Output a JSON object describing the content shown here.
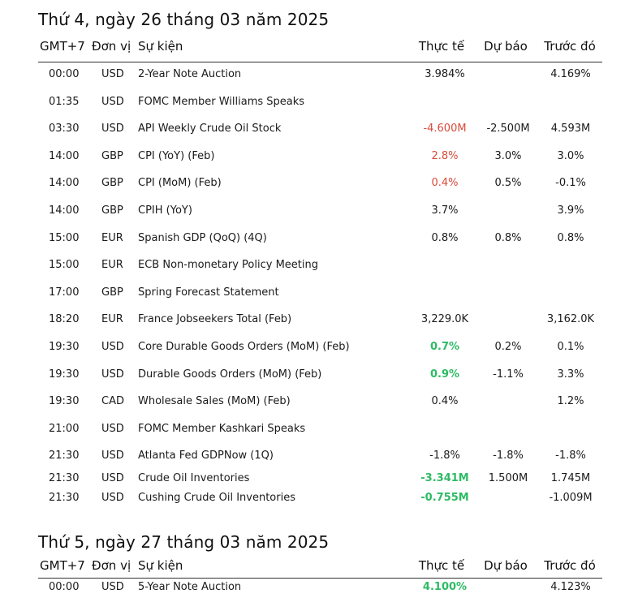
{
  "headers": {
    "gmt": "GMT+7",
    "currency": "Đơn vị",
    "event": "Sự kiện",
    "actual": "Thực tế",
    "forecast": "Dự báo",
    "previous": "Trước đó"
  },
  "days": [
    {
      "title": "Thứ 4, ngày 26 tháng 03 năm 2025",
      "rows": [
        {
          "time": "00:00",
          "cur": "USD",
          "event": "2-Year Note Auction",
          "actual": "3.984%",
          "forecast": "",
          "previous": "4.169%",
          "tone": ""
        },
        {
          "time": "01:35",
          "cur": "USD",
          "event": "FOMC Member Williams Speaks",
          "actual": "",
          "forecast": "",
          "previous": "",
          "tone": ""
        },
        {
          "time": "03:30",
          "cur": "USD",
          "event": "API Weekly Crude Oil Stock",
          "actual": "-4.600M",
          "forecast": "-2.500M",
          "previous": "4.593M",
          "tone": "neg"
        },
        {
          "time": "14:00",
          "cur": "GBP",
          "event": "CPI (YoY) (Feb)",
          "actual": "2.8%",
          "forecast": "3.0%",
          "previous": "3.0%",
          "tone": "neg"
        },
        {
          "time": "14:00",
          "cur": "GBP",
          "event": "CPI (MoM) (Feb)",
          "actual": "0.4%",
          "forecast": "0.5%",
          "previous": "-0.1%",
          "tone": "neg"
        },
        {
          "time": "14:00",
          "cur": "GBP",
          "event": "CPIH (YoY)",
          "actual": "3.7%",
          "forecast": "",
          "previous": "3.9%",
          "tone": ""
        },
        {
          "time": "15:00",
          "cur": "EUR",
          "event": "Spanish GDP (QoQ) (4Q)",
          "actual": "0.8%",
          "forecast": "0.8%",
          "previous": "0.8%",
          "tone": ""
        },
        {
          "time": "15:00",
          "cur": "EUR",
          "event": "ECB Non-monetary Policy Meeting",
          "actual": "",
          "forecast": "",
          "previous": "",
          "tone": ""
        },
        {
          "time": "17:00",
          "cur": "GBP",
          "event": "Spring Forecast Statement",
          "actual": "",
          "forecast": "",
          "previous": "",
          "tone": ""
        },
        {
          "time": "18:20",
          "cur": "EUR",
          "event": "France Jobseekers Total (Feb)",
          "actual": "3,229.0K",
          "forecast": "",
          "previous": "3,162.0K",
          "tone": ""
        },
        {
          "time": "19:30",
          "cur": "USD",
          "event": "Core Durable Goods Orders (MoM) (Feb)",
          "actual": "0.7%",
          "forecast": "0.2%",
          "previous": "0.1%",
          "tone": "pos"
        },
        {
          "time": "19:30",
          "cur": "USD",
          "event": "Durable Goods Orders (MoM) (Feb)",
          "actual": "0.9%",
          "forecast": "-1.1%",
          "previous": "3.3%",
          "tone": "pos"
        },
        {
          "time": "19:30",
          "cur": "CAD",
          "event": "Wholesale Sales (MoM) (Feb)",
          "actual": "0.4%",
          "forecast": "",
          "previous": "1.2%",
          "tone": ""
        },
        {
          "time": "21:00",
          "cur": "USD",
          "event": "FOMC Member Kashkari Speaks",
          "actual": "",
          "forecast": "",
          "previous": "",
          "tone": ""
        },
        {
          "time": "21:30",
          "cur": "USD",
          "event": "Atlanta Fed GDPNow (1Q)",
          "actual": "-1.8%",
          "forecast": "-1.8%",
          "previous": "-1.8%",
          "tone": ""
        },
        {
          "time": "21:30",
          "cur": "USD",
          "event": "Crude Oil Inventories",
          "actual": "-3.341M",
          "forecast": "1.500M",
          "previous": "1.745M",
          "tone": "pos"
        },
        {
          "time": "21:30",
          "cur": "USD",
          "event": "Cushing Crude Oil Inventories",
          "actual": "-0.755M",
          "forecast": "",
          "previous": "-1.009M",
          "tone": "pos"
        }
      ]
    },
    {
      "title": "Thứ 5, ngày 27 tháng 03 năm 2025",
      "rows": [
        {
          "time": "00:00",
          "cur": "USD",
          "event": "5-Year Note Auction",
          "actual": "4.100%",
          "forecast": "",
          "previous": "4.123%",
          "tone": "pos"
        }
      ]
    }
  ]
}
